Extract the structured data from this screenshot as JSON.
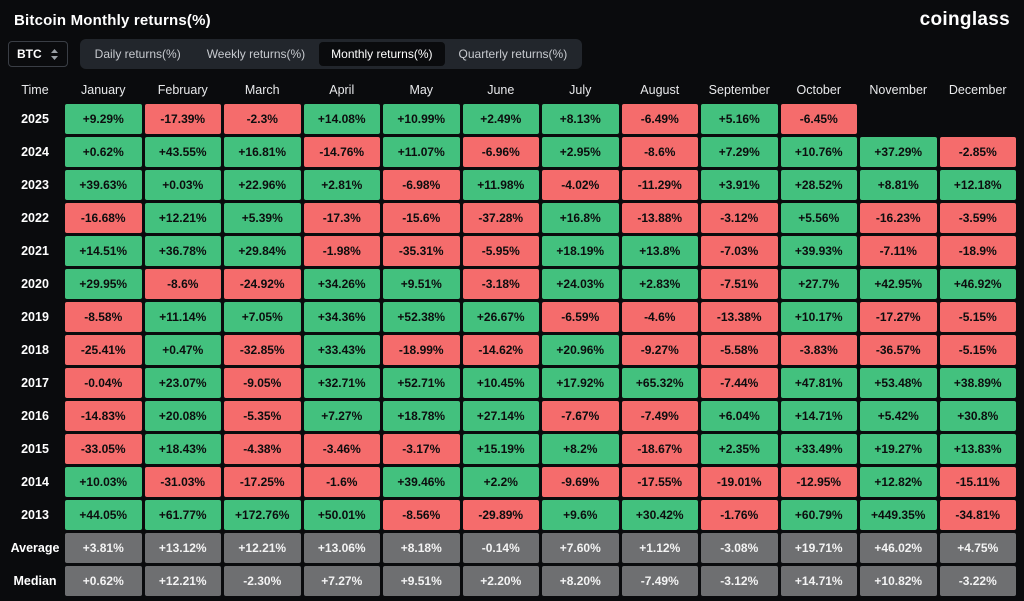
{
  "header": {
    "title": "Bitcoin Monthly returns(%)",
    "logo": "coinglass"
  },
  "controls": {
    "symbol": "BTC",
    "tabs": [
      {
        "label": "Daily returns(%)",
        "active": false
      },
      {
        "label": "Weekly returns(%)",
        "active": false
      },
      {
        "label": "Monthly returns(%)",
        "active": true
      },
      {
        "label": "Quarterly returns(%)",
        "active": false
      }
    ]
  },
  "chart_data": {
    "type": "heatmap",
    "title": "Bitcoin Monthly returns(%)",
    "columns": [
      "Time",
      "January",
      "February",
      "March",
      "April",
      "May",
      "June",
      "July",
      "August",
      "September",
      "October",
      "November",
      "December"
    ],
    "rows": [
      {
        "label": "2025",
        "type": "year",
        "values": [
          "+9.29%",
          "-17.39%",
          "-2.3%",
          "+14.08%",
          "+10.99%",
          "+2.49%",
          "+8.13%",
          "-6.49%",
          "+5.16%",
          "-6.45%",
          "",
          ""
        ]
      },
      {
        "label": "2024",
        "type": "year",
        "values": [
          "+0.62%",
          "+43.55%",
          "+16.81%",
          "-14.76%",
          "+11.07%",
          "-6.96%",
          "+2.95%",
          "-8.6%",
          "+7.29%",
          "+10.76%",
          "+37.29%",
          "-2.85%"
        ]
      },
      {
        "label": "2023",
        "type": "year",
        "values": [
          "+39.63%",
          "+0.03%",
          "+22.96%",
          "+2.81%",
          "-6.98%",
          "+11.98%",
          "-4.02%",
          "-11.29%",
          "+3.91%",
          "+28.52%",
          "+8.81%",
          "+12.18%"
        ]
      },
      {
        "label": "2022",
        "type": "year",
        "values": [
          "-16.68%",
          "+12.21%",
          "+5.39%",
          "-17.3%",
          "-15.6%",
          "-37.28%",
          "+16.8%",
          "-13.88%",
          "-3.12%",
          "+5.56%",
          "-16.23%",
          "-3.59%"
        ]
      },
      {
        "label": "2021",
        "type": "year",
        "values": [
          "+14.51%",
          "+36.78%",
          "+29.84%",
          "-1.98%",
          "-35.31%",
          "-5.95%",
          "+18.19%",
          "+13.8%",
          "-7.03%",
          "+39.93%",
          "-7.11%",
          "-18.9%"
        ]
      },
      {
        "label": "2020",
        "type": "year",
        "values": [
          "+29.95%",
          "-8.6%",
          "-24.92%",
          "+34.26%",
          "+9.51%",
          "-3.18%",
          "+24.03%",
          "+2.83%",
          "-7.51%",
          "+27.7%",
          "+42.95%",
          "+46.92%"
        ]
      },
      {
        "label": "2019",
        "type": "year",
        "values": [
          "-8.58%",
          "+11.14%",
          "+7.05%",
          "+34.36%",
          "+52.38%",
          "+26.67%",
          "-6.59%",
          "-4.6%",
          "-13.38%",
          "+10.17%",
          "-17.27%",
          "-5.15%"
        ]
      },
      {
        "label": "2018",
        "type": "year",
        "values": [
          "-25.41%",
          "+0.47%",
          "-32.85%",
          "+33.43%",
          "-18.99%",
          "-14.62%",
          "+20.96%",
          "-9.27%",
          "-5.58%",
          "-3.83%",
          "-36.57%",
          "-5.15%"
        ]
      },
      {
        "label": "2017",
        "type": "year",
        "values": [
          "-0.04%",
          "+23.07%",
          "-9.05%",
          "+32.71%",
          "+52.71%",
          "+10.45%",
          "+17.92%",
          "+65.32%",
          "-7.44%",
          "+47.81%",
          "+53.48%",
          "+38.89%"
        ]
      },
      {
        "label": "2016",
        "type": "year",
        "values": [
          "-14.83%",
          "+20.08%",
          "-5.35%",
          "+7.27%",
          "+18.78%",
          "+27.14%",
          "-7.67%",
          "-7.49%",
          "+6.04%",
          "+14.71%",
          "+5.42%",
          "+30.8%"
        ]
      },
      {
        "label": "2015",
        "type": "year",
        "values": [
          "-33.05%",
          "+18.43%",
          "-4.38%",
          "-3.46%",
          "-3.17%",
          "+15.19%",
          "+8.2%",
          "-18.67%",
          "+2.35%",
          "+33.49%",
          "+19.27%",
          "+13.83%"
        ]
      },
      {
        "label": "2014",
        "type": "year",
        "values": [
          "+10.03%",
          "-31.03%",
          "-17.25%",
          "-1.6%",
          "+39.46%",
          "+2.2%",
          "-9.69%",
          "-17.55%",
          "-19.01%",
          "-12.95%",
          "+12.82%",
          "-15.11%"
        ]
      },
      {
        "label": "2013",
        "type": "year",
        "values": [
          "+44.05%",
          "+61.77%",
          "+172.76%",
          "+50.01%",
          "-8.56%",
          "-29.89%",
          "+9.6%",
          "+30.42%",
          "-1.76%",
          "+60.79%",
          "+449.35%",
          "-34.81%"
        ]
      },
      {
        "label": "Average",
        "type": "summary",
        "values": [
          "+3.81%",
          "+13.12%",
          "+12.21%",
          "+13.06%",
          "+8.18%",
          "-0.14%",
          "+7.60%",
          "+1.12%",
          "-3.08%",
          "+19.71%",
          "+46.02%",
          "+4.75%"
        ]
      },
      {
        "label": "Median",
        "type": "summary",
        "values": [
          "+0.62%",
          "+12.21%",
          "-2.30%",
          "+7.27%",
          "+9.51%",
          "+2.20%",
          "+8.20%",
          "-7.49%",
          "-3.12%",
          "+14.71%",
          "+10.82%",
          "-3.22%"
        ]
      }
    ]
  },
  "colors": {
    "positive": "#43c17e",
    "negative": "#f56c6c",
    "summary": "#6e6f71",
    "background": "#0a0b0d"
  }
}
